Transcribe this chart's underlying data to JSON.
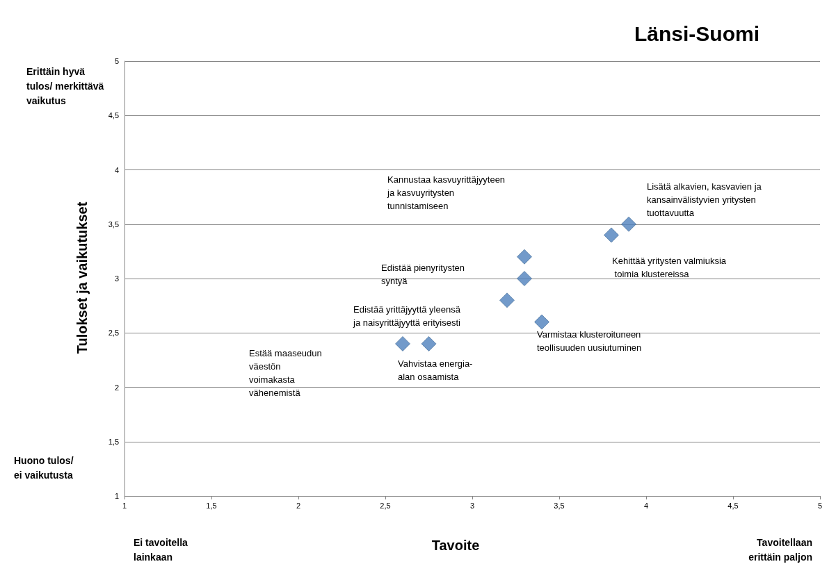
{
  "chart_data": {
    "type": "scatter",
    "title": "Länsi-Suomi",
    "xlabel": "Tavoite",
    "ylabel": "Tulokset ja vaikutukset",
    "x": [
      2.6,
      2.75,
      3.2,
      3.3,
      3.3,
      3.4,
      3.8,
      3.9
    ],
    "values": [
      2.4,
      2.4,
      2.8,
      3.0,
      3.2,
      2.6,
      3.4,
      3.5
    ],
    "color": "#4f81bd",
    "marker": "diamond",
    "grid": "y",
    "xlim": [
      1,
      5
    ],
    "xticks": [
      1,
      {
        "value": 1.5,
        "label": "1,5"
      },
      2,
      {
        "value": 2.5,
        "label": "2,5"
      },
      3,
      {
        "value": 3.5,
        "label": "3,5"
      },
      4,
      {
        "value": 4.5,
        "label": "4,5"
      },
      5
    ],
    "ylim": [
      1,
      5
    ],
    "yticks": [
      1,
      {
        "value": 1.5,
        "label": "1,5"
      },
      2,
      {
        "value": 2.5,
        "label": "2,5"
      },
      3,
      {
        "value": 3.5,
        "label": "3,5"
      },
      4,
      {
        "value": 4.5,
        "label": "4,5"
      },
      5
    ],
    "annotations": [
      "Erittäin hyvä\ntulos/ merkittävä\nvaikutus",
      "Huono tulos/\nei vaikutusta",
      "Ei tavoitella\nlainkaan",
      "Tavoitellaan\nerittäin paljon",
      "Kannustaa kasvuyrittäjyyteen\nja kasvuyritysten\ntunnistamiseen",
      "Lisätä alkavien, kasvavien ja\nkansainvälistyvien yritysten\ntuottavuutta",
      "Kehittää yritysten valmiuksia\n toimia klustereissa",
      "Edistää pienyritysten\nsyntyä",
      "Edistää yrittäjyyttä yleensä\nja naisyrittäjyyttä erityisesti",
      "Varmistaa klusteroituneen\nteollisuuden uusiutuminen",
      "Vahvistaa energia-\nalan osaamista",
      "Estää maaseudun\nväestön\nvoimakasta\nvähenemistä"
    ]
  }
}
